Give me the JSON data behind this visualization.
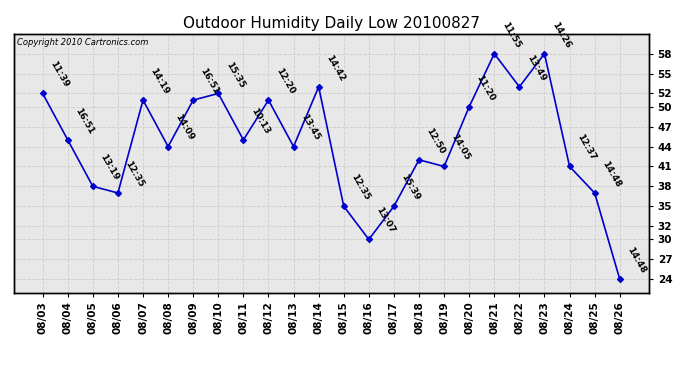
{
  "title": "Outdoor Humidity Daily Low 20100827",
  "copyright": "Copyright 2010 Cartronics.com",
  "dates": [
    "08/03",
    "08/04",
    "08/05",
    "08/06",
    "08/07",
    "08/08",
    "08/09",
    "08/10",
    "08/11",
    "08/12",
    "08/13",
    "08/14",
    "08/15",
    "08/16",
    "08/17",
    "08/18",
    "08/19",
    "08/20",
    "08/21",
    "08/22",
    "08/23",
    "08/24",
    "08/25",
    "08/26"
  ],
  "values": [
    52,
    45,
    38,
    37,
    51,
    44,
    51,
    52,
    45,
    51,
    44,
    53,
    35,
    30,
    35,
    42,
    41,
    50,
    58,
    53,
    58,
    41,
    37,
    24
  ],
  "labels": [
    "11:39",
    "16:51",
    "13:19",
    "12:35",
    "14:19",
    "14:09",
    "16:51",
    "15:35",
    "10:13",
    "12:20",
    "13:45",
    "14:42",
    "12:35",
    "13:07",
    "15:39",
    "12:50",
    "14:05",
    "11:20",
    "11:55",
    "13:49",
    "14:26",
    "12:37",
    "14:48",
    "14:48"
  ],
  "ylim": [
    22,
    61
  ],
  "yticks": [
    24,
    27,
    30,
    32,
    35,
    38,
    41,
    44,
    47,
    50,
    52,
    55,
    58
  ],
  "line_color": "#0000cc",
  "marker_color": "#0000cc",
  "bg_color": "#ffffff",
  "plot_bg_color": "#e8e8e8",
  "grid_color": "#cccccc",
  "title_fontsize": 11,
  "label_fontsize": 6.5,
  "tick_fontsize": 7.5
}
